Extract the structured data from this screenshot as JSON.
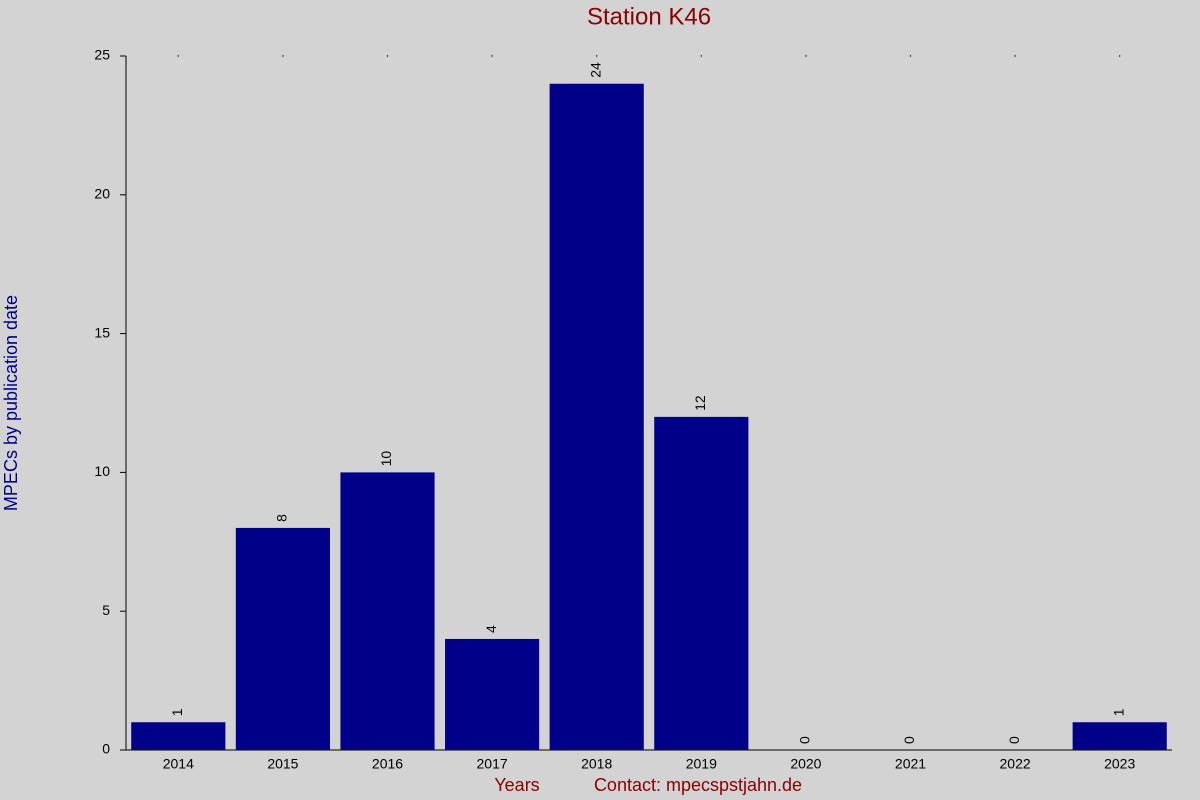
{
  "chart_data": {
    "type": "bar",
    "title": "Station K46",
    "x_label": "Years",
    "annotation": "Contact: mpecspstjahn.de",
    "y_label": "MPECs by publication date",
    "categories": [
      "2014",
      "2015",
      "2016",
      "2017",
      "2018",
      "2019",
      "2020",
      "2021",
      "2022",
      "2023"
    ],
    "values": [
      1,
      8,
      10,
      4,
      24,
      12,
      0,
      0,
      0,
      1
    ],
    "color": "#000088",
    "ylim": [
      0,
      25
    ],
    "yticks": [
      0,
      5,
      10,
      15,
      20,
      25
    ],
    "grid": false
  }
}
